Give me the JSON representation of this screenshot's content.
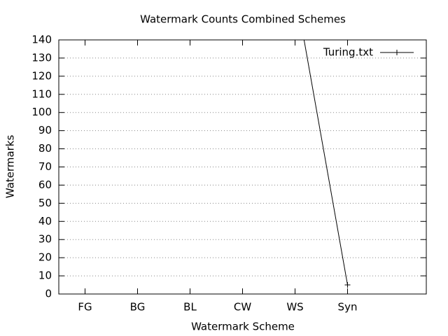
{
  "chart_data": {
    "type": "line",
    "title": "Watermark Counts Combined Schemes",
    "xlabel": "Watermark Scheme",
    "ylabel": "Watermarks",
    "categories": [
      "FG",
      "BG",
      "BL",
      "CW",
      "WS",
      "Syn"
    ],
    "xlim": [
      -0.5,
      6.5
    ],
    "series": [
      {
        "name": "Turing.txt",
        "color": "#000000",
        "values": [
          null,
          null,
          null,
          null,
          168,
          5
        ]
      }
    ],
    "ylim": [
      0,
      140
    ],
    "yticks": [
      0,
      10,
      20,
      30,
      40,
      50,
      60,
      70,
      80,
      90,
      100,
      110,
      120,
      130,
      140
    ],
    "grid": true,
    "legend": "top-right"
  }
}
